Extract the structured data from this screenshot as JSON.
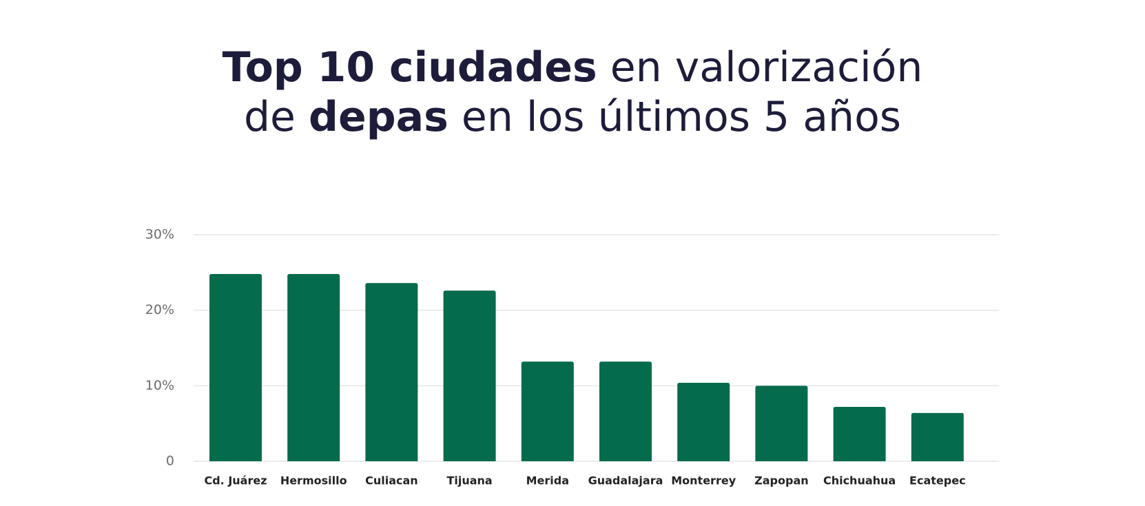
{
  "chart_data": {
    "type": "bar",
    "title": [
      [
        {
          "text": "Top 10 ciudades",
          "bold": true
        },
        {
          "text": " en valorización",
          "bold": false
        }
      ],
      [
        {
          "text": "de ",
          "bold": false
        },
        {
          "text": "depas",
          "bold": true
        },
        {
          "text": " en los últimos 5 años",
          "bold": false
        }
      ]
    ],
    "categories": [
      "Cd. Juárez",
      "Hermosillo",
      "Culiacan",
      "Tijuana",
      "Merida",
      "Guadalajara",
      "Monterrey",
      "Zapopan",
      "Chichuahua",
      "Ecatepec"
    ],
    "values": [
      24.8,
      24.8,
      23.6,
      22.6,
      13.2,
      13.2,
      10.4,
      10.0,
      7.2,
      6.4
    ],
    "color": "#046b4c",
    "ylim": [
      0,
      30
    ],
    "yticks": [
      0,
      {
        "value": 10,
        "label": "10%"
      },
      {
        "value": 20,
        "label": "20%"
      },
      {
        "value": 30,
        "label": "30%"
      }
    ],
    "grid": true
  }
}
